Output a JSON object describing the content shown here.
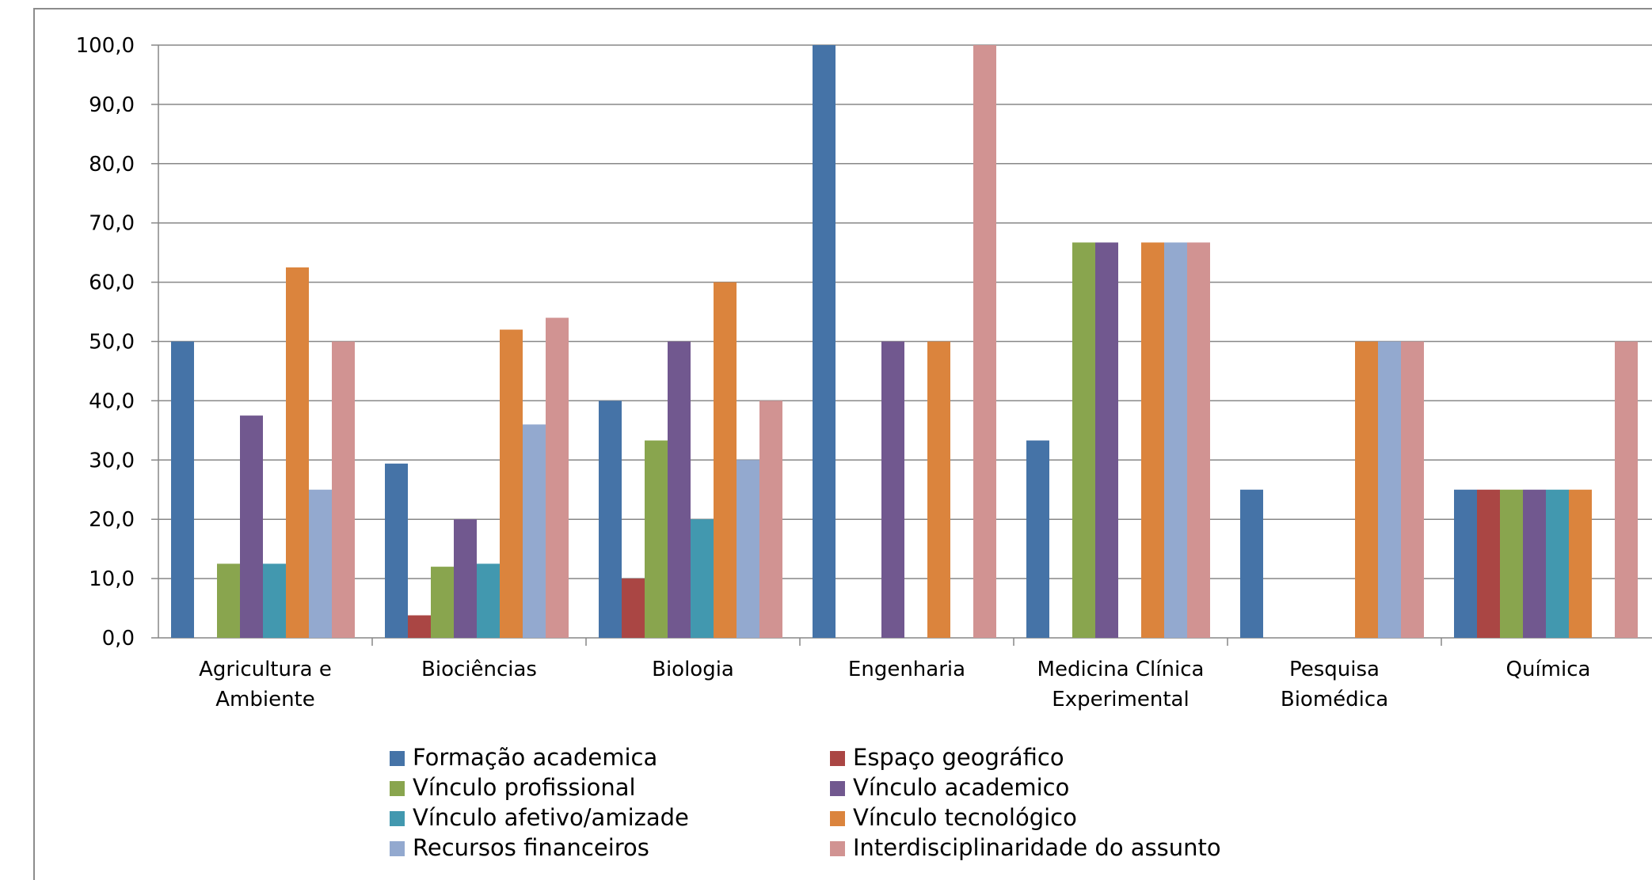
{
  "chart_data": {
    "type": "bar",
    "title": "",
    "xlabel": "",
    "ylabel": "",
    "ylim": [
      0,
      100
    ],
    "y_ticks": [
      "0,0",
      "10,0",
      "20,0",
      "30,0",
      "40,0",
      "50,0",
      "60,0",
      "70,0",
      "80,0",
      "90,0",
      "100,0"
    ],
    "grid": true,
    "legend_position": "bottom",
    "categories": [
      [
        "Agricultura e",
        "Ambiente"
      ],
      [
        "Biociências"
      ],
      [
        "Biologia"
      ],
      [
        "Engenharia"
      ],
      [
        "Medicina Clínica",
        "Experimental"
      ],
      [
        "Pesquisa",
        "Biomédica"
      ],
      [
        "Química"
      ]
    ],
    "series": [
      {
        "name": "Formação academica",
        "color": "#4573A7",
        "values": [
          50.0,
          29.4,
          40.0,
          100.0,
          33.3,
          25.0,
          25.0
        ]
      },
      {
        "name": "Espaço geográfico",
        "color": "#AA4644",
        "values": [
          0,
          3.8,
          10.0,
          0,
          0,
          0,
          25.0
        ]
      },
      {
        "name": "Vínculo profissional",
        "color": "#89A54E",
        "values": [
          12.5,
          12.0,
          33.3,
          0,
          66.7,
          0,
          25.0
        ]
      },
      {
        "name": "Vínculo academico",
        "color": "#71588F",
        "values": [
          37.5,
          20.0,
          50.0,
          50.0,
          66.7,
          0,
          25.0
        ]
      },
      {
        "name": "Vínculo afetivo/amizade",
        "color": "#4298AF",
        "values": [
          12.5,
          12.5,
          20.0,
          0,
          0,
          0,
          25.0
        ]
      },
      {
        "name": "Vínculo tecnológico",
        "color": "#DB843D",
        "values": [
          62.5,
          52.0,
          60.0,
          50.0,
          66.7,
          50.0,
          25.0
        ]
      },
      {
        "name": "Recursos financeiros",
        "color": "#93A9CF",
        "values": [
          25.0,
          36.0,
          30.0,
          0,
          66.7,
          50.0,
          0
        ]
      },
      {
        "name": "Interdisciplinaridade do assunto",
        "color": "#D19392",
        "values": [
          50.0,
          54.0,
          40.0,
          100.0,
          66.7,
          50.0,
          50.0
        ]
      }
    ],
    "legend_order": [
      0,
      1,
      2,
      3,
      4,
      5,
      6,
      7
    ]
  }
}
